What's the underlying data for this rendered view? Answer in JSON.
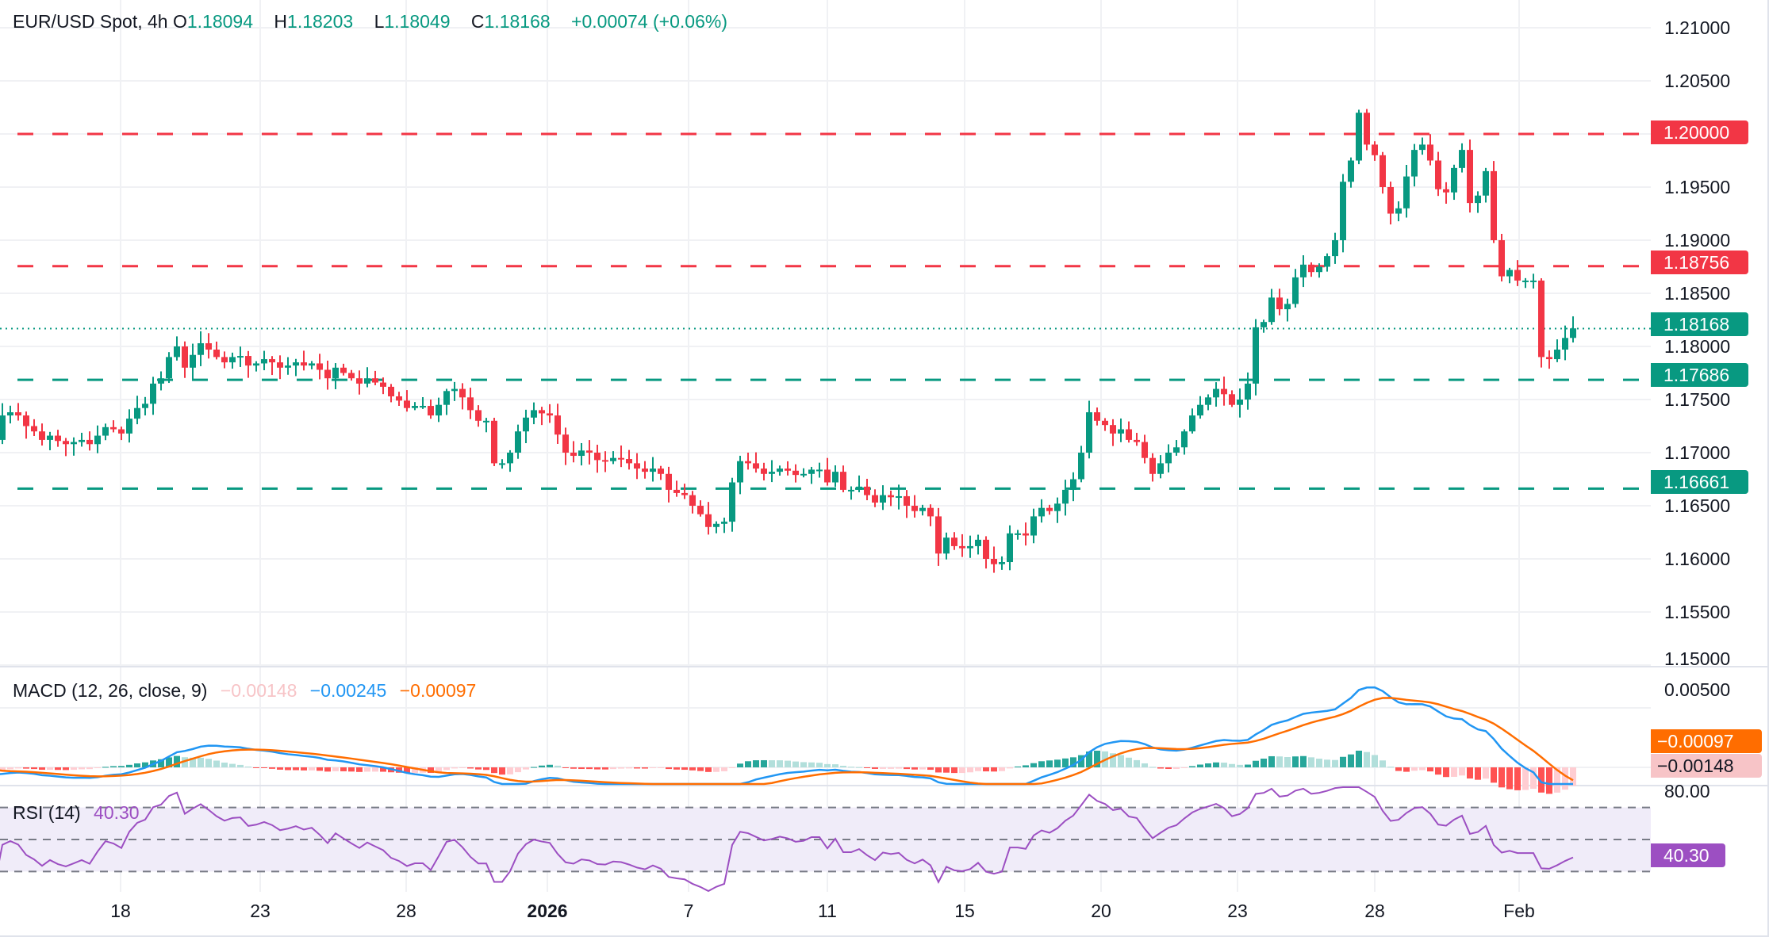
{
  "header": {
    "symbol": "EUR/USD Spot, 4h",
    "open_key": "O",
    "open": "1.18094",
    "high_key": "H",
    "high": "1.18203",
    "low_key": "L",
    "low": "1.18049",
    "close_key": "C",
    "close": "1.18168",
    "change": "+0.00074 (+0.06%)"
  },
  "macd": {
    "title": "MACD (12, 26, close, 9)",
    "histogram": "−0.00148",
    "macd": "−0.00245",
    "signal": "−0.00097",
    "axis_label": "0.00500",
    "signal_tag": "−0.00097",
    "hist_tag": "−0.00148"
  },
  "rsi": {
    "title": "RSI (14)",
    "value": "40.30",
    "axis_label": "80.00",
    "tag": "40.30"
  },
  "price_axis": [
    "1.21000",
    "1.20500",
    "1.19500",
    "1.19000",
    "1.18500",
    "1.18000",
    "1.17500",
    "1.17000",
    "1.16500",
    "1.16000",
    "1.15500",
    "1.15000"
  ],
  "level_tags": {
    "r1": "1.20000",
    "r2": "1.18756",
    "current": "1.18168",
    "s1": "1.17686",
    "s2": "1.16661"
  },
  "date_axis": [
    "18",
    "23",
    "28",
    "2026",
    "7",
    "11",
    "15",
    "20",
    "23",
    "28",
    "Feb"
  ],
  "colors": {
    "up": "#089981",
    "down": "#f23645",
    "macd_line": "#2196f3",
    "signal_line": "#ff6d00",
    "rsi_line": "#9c4fc2",
    "rsi_band": "#f0ecf9",
    "resistance": "#f23645",
    "support": "#089981"
  },
  "chart_data": {
    "type": "candlestick",
    "title": "EUR/USD Spot, 4h",
    "ylim": [
      1.15,
      1.21
    ],
    "yticks": [
      1.15,
      1.155,
      1.16,
      1.165,
      1.17,
      1.175,
      1.18,
      1.185,
      1.19,
      1.195,
      1.2,
      1.205,
      1.21
    ],
    "xticks": [
      "18",
      "23",
      "28",
      "2026",
      "7",
      "11",
      "15",
      "20",
      "23",
      "28",
      "Feb"
    ],
    "horizontal_levels": [
      {
        "value": 1.2,
        "type": "resistance",
        "style": "dashed",
        "color": "#f23645"
      },
      {
        "value": 1.18756,
        "type": "resistance",
        "style": "dashed",
        "color": "#f23645"
      },
      {
        "value": 1.18168,
        "type": "last_price",
        "style": "dotted",
        "color": "#089981"
      },
      {
        "value": 1.17686,
        "type": "support",
        "style": "dashed",
        "color": "#089981"
      },
      {
        "value": 1.16661,
        "type": "support",
        "style": "dashed",
        "color": "#089981"
      }
    ],
    "closes": [
      1.1746,
      1.1742,
      1.175,
      1.1745,
      1.1744,
      1.1746,
      1.1748,
      1.1752,
      1.1745,
      1.1742,
      1.1722,
      1.171,
      1.1712,
      1.1735,
      1.1738,
      1.1735,
      1.1725,
      1.172,
      1.1712,
      1.1716,
      1.1711,
      1.1708,
      1.171,
      1.1712,
      1.1708,
      1.1716,
      1.1724,
      1.1722,
      1.1718,
      1.1732,
      1.1742,
      1.1746,
      1.1765,
      1.177,
      1.179,
      1.18,
      1.178,
      1.1792,
      1.1803,
      1.1797,
      1.179,
      1.1785,
      1.179,
      1.1791,
      1.1782,
      1.1784,
      1.1788,
      1.1785,
      1.178,
      1.1782,
      1.1785,
      1.1782,
      1.1784,
      1.1778,
      1.177,
      1.178,
      1.1775,
      1.177,
      1.1765,
      1.177,
      1.1766,
      1.1762,
      1.1753,
      1.1749,
      1.1742,
      1.1744,
      1.1744,
      1.1735,
      1.1745,
      1.1758,
      1.176,
      1.1752,
      1.174,
      1.173,
      1.173,
      1.169,
      1.169,
      1.17,
      1.172,
      1.1733,
      1.174,
      1.1737,
      1.1735,
      1.1717,
      1.17,
      1.1697,
      1.1702,
      1.17,
      1.1693,
      1.1692,
      1.1695,
      1.1694,
      1.169,
      1.1685,
      1.1682,
      1.1685,
      1.168,
      1.1665,
      1.1662,
      1.166,
      1.165,
      1.1642,
      1.163,
      1.1633,
      1.1635,
      1.1672,
      1.1692,
      1.169,
      1.1685,
      1.168,
      1.1682,
      1.1685,
      1.1683,
      1.1679,
      1.168,
      1.1684,
      1.1684,
      1.1672,
      1.1682,
      1.1665,
      1.1665,
      1.1668,
      1.166,
      1.1653,
      1.166,
      1.1658,
      1.1659,
      1.165,
      1.1645,
      1.1648,
      1.164,
      1.1605,
      1.162,
      1.1612,
      1.161,
      1.1612,
      1.1618,
      1.16,
      1.1595,
      1.1597,
      1.1624,
      1.1624,
      1.1622,
      1.164,
      1.1648,
      1.1645,
      1.1652,
      1.1665,
      1.1675,
      1.17,
      1.1738,
      1.173,
      1.1726,
      1.1718,
      1.1722,
      1.1712,
      1.171,
      1.1695,
      1.168,
      1.169,
      1.17,
      1.1705,
      1.172,
      1.1735,
      1.1745,
      1.1752,
      1.176,
      1.1755,
      1.1745,
      1.175,
      1.1765,
      1.1818,
      1.1823,
      1.1846,
      1.1835,
      1.184,
      1.1865,
      1.1877,
      1.187,
      1.1875,
      1.1885,
      1.19,
      1.1955,
      1.1975,
      1.202,
      1.199,
      1.198,
      1.195,
      1.1925,
      1.193,
      1.196,
      1.1985,
      1.199,
      1.1975,
      1.1948,
      1.1945,
      1.1968,
      1.1985,
      1.1935,
      1.1942,
      1.1965,
      1.19,
      1.1866,
      1.1872,
      1.1862,
      1.1862,
      1.1862,
      1.179,
      1.1788,
      1.1797,
      1.1808,
      1.1817
    ],
    "rsi": {
      "value": 40.3,
      "levels": [
        70,
        50,
        30
      ],
      "range": [
        20,
        80
      ]
    },
    "macd": {
      "macd": -0.00245,
      "signal": -0.00097,
      "histogram": -0.00148
    }
  }
}
